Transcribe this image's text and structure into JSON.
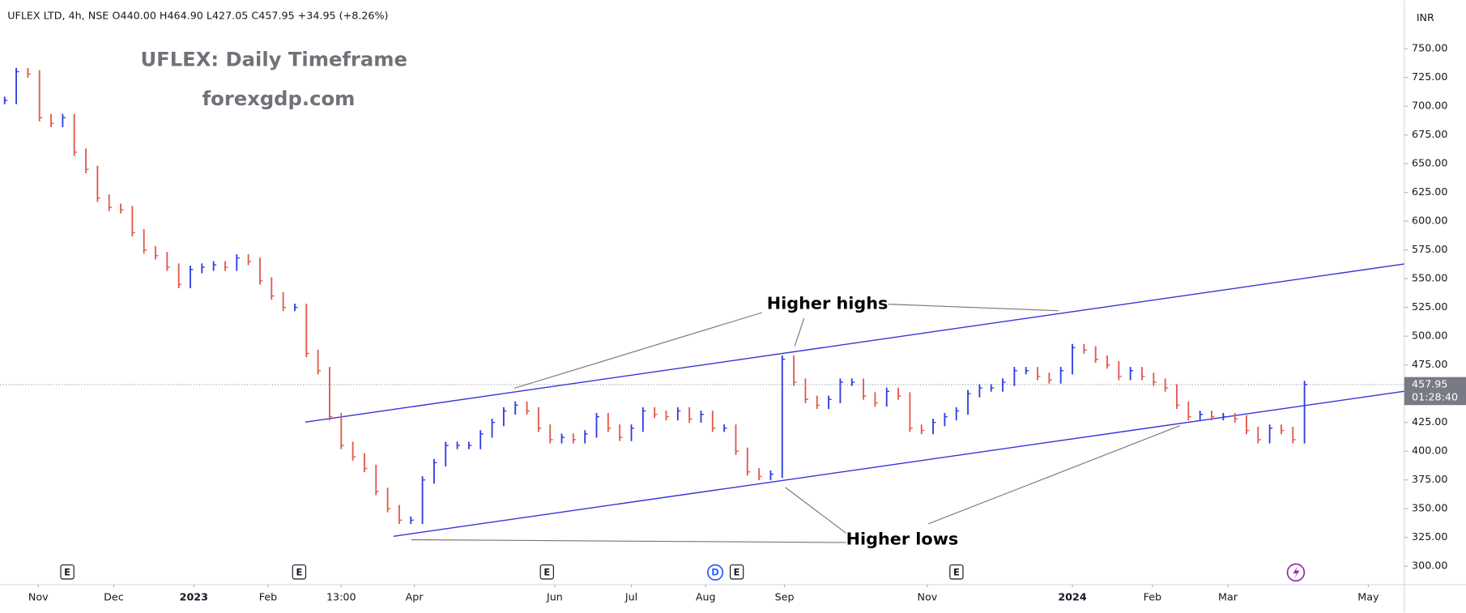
{
  "chart_data": {
    "type": "price-bars",
    "symbol": "UFLEX LTD, 4h, NSE",
    "ohlc": "O440.00 H464.90 L427.05 C457.95 +34.95 (+8.26%)",
    "title": "UFLEX: Daily Timeframe",
    "subtitle": "forexgdp.com",
    "currency": "INR",
    "up_color": "#2f3ee0",
    "down_color": "#e05a4e",
    "trend_color": "#3535d6",
    "x": [
      0,
      1,
      2,
      3,
      4,
      5,
      6,
      7,
      8,
      9,
      10,
      11,
      12,
      13,
      14,
      15,
      16,
      17,
      18,
      19,
      20,
      21,
      22,
      23,
      24,
      25,
      26,
      27,
      28,
      29,
      30,
      31,
      32,
      33,
      34,
      35,
      36,
      37,
      38,
      39,
      40,
      41,
      42,
      43,
      44,
      45,
      46,
      47,
      48,
      49,
      50,
      51,
      52,
      53,
      54,
      55,
      56,
      57,
      58,
      59,
      60,
      61,
      62,
      63,
      64,
      65,
      66,
      67,
      68,
      69,
      70,
      71,
      72,
      73,
      74,
      75,
      76,
      77,
      78,
      79,
      80,
      81,
      82,
      83,
      84,
      85,
      86,
      87,
      88,
      89,
      90,
      91,
      92,
      93,
      94,
      95,
      96,
      97,
      98,
      99,
      100,
      101,
      102,
      103,
      104,
      105,
      106,
      107,
      108,
      109,
      110,
      111,
      112
    ],
    "values": [
      705,
      730,
      728,
      690,
      685,
      690,
      660,
      645,
      620,
      612,
      610,
      590,
      575,
      570,
      560,
      545,
      558,
      560,
      562,
      560,
      568,
      565,
      548,
      535,
      525,
      525,
      485,
      470,
      430,
      405,
      395,
      385,
      365,
      350,
      340,
      340,
      375,
      390,
      405,
      405,
      405,
      415,
      425,
      435,
      440,
      435,
      420,
      410,
      412,
      410,
      415,
      430,
      420,
      412,
      420,
      435,
      432,
      430,
      435,
      428,
      432,
      420,
      420,
      400,
      382,
      378,
      380,
      480,
      460,
      445,
      440,
      445,
      460,
      460,
      448,
      442,
      452,
      448,
      420,
      418,
      425,
      430,
      435,
      450,
      455,
      455,
      460,
      470,
      470,
      465,
      462,
      470,
      490,
      488,
      480,
      475,
      465,
      470,
      465,
      460,
      455,
      440,
      430,
      432,
      430,
      430,
      428,
      418,
      410,
      420,
      418,
      410,
      457.95
    ],
    "last_price": 457.95,
    "countdown": "01:28:40",
    "trendlines": [
      {
        "x": [
          25.9,
          120.6
        ],
        "y": [
          425.3,
          562.8
        ]
      },
      {
        "x": [
          33.5,
          120.6
        ],
        "y": [
          326.0,
          452.1
        ]
      }
    ],
    "annotations": [
      "Higher highs",
      "Higher lows"
    ],
    "events": [
      "E",
      "E",
      "E",
      "D",
      "E",
      "E"
    ],
    "xlim": [
      -0.4,
      120.6
    ],
    "ylim": [
      284,
      792
    ],
    "xticks": [
      {
        "value": 2.9,
        "label": "Nov"
      },
      {
        "value": 9.4,
        "label": "Dec"
      },
      {
        "value": 16.3,
        "label": "2023"
      },
      {
        "value": 22.7,
        "label": "Feb"
      },
      {
        "value": 29.0,
        "label": "13:00"
      },
      {
        "value": 35.3,
        "label": "Apr"
      },
      {
        "value": 47.4,
        "label": "Jun"
      },
      {
        "value": 54.0,
        "label": "Jul"
      },
      {
        "value": 60.4,
        "label": "Aug"
      },
      {
        "value": 67.2,
        "label": "Sep"
      },
      {
        "value": 79.5,
        "label": "Nov"
      },
      {
        "value": 92.0,
        "label": "2024"
      },
      {
        "value": 98.9,
        "label": "Feb"
      },
      {
        "value": 105.4,
        "label": "Mar"
      },
      {
        "value": 117.5,
        "label": "May"
      }
    ],
    "yticks": [
      {
        "value": 300,
        "label": "300.00"
      },
      {
        "value": 325,
        "label": "325.00"
      },
      {
        "value": 350,
        "label": "350.00"
      },
      {
        "value": 375,
        "label": "375.00"
      },
      {
        "value": 400,
        "label": "400.00"
      },
      {
        "value": 425,
        "label": "425.00"
      },
      {
        "value": 450,
        "label": "450.00"
      },
      {
        "value": 475,
        "label": "475.00"
      },
      {
        "value": 500,
        "label": "500.00"
      },
      {
        "value": 525,
        "label": "525.00"
      },
      {
        "value": 550,
        "label": "550.00"
      },
      {
        "value": 575,
        "label": "575.00"
      },
      {
        "value": 600,
        "label": "600.00"
      },
      {
        "value": 625,
        "label": "625.00"
      },
      {
        "value": 650,
        "label": "650.00"
      },
      {
        "value": 675,
        "label": "675.00"
      },
      {
        "value": 700,
        "label": "700.00"
      },
      {
        "value": 725,
        "label": "725.00"
      },
      {
        "value": 750,
        "label": "750.00"
      }
    ]
  }
}
